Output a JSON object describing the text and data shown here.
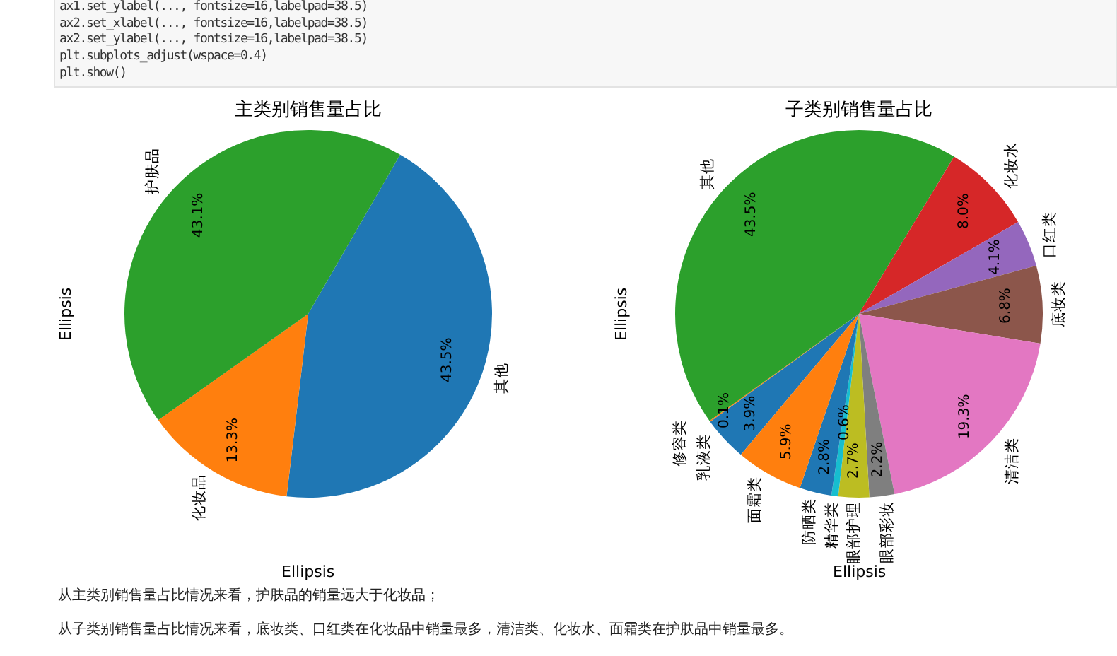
{
  "chart_data": [
    {
      "type": "pie",
      "title": "主类别销售量占比",
      "xlabel": "Ellipsis",
      "ylabel": "Ellipsis",
      "categories": [
        "其他",
        "化妆品",
        "护肤品"
      ],
      "values": [
        43.5,
        13.3,
        43.1
      ],
      "colors": [
        "#1f77b4",
        "#ff7f0e",
        "#2ca02c"
      ],
      "value_labels": [
        "43.5%",
        "13.3%",
        "43.1%"
      ],
      "annotations": [
        "ax1.set_ylabel(..., fontsize=16,labelpad=38.5)\nax2.set_xlabel(..., fontsize=16,labelpad=38.5)\nax2.set_ylabel(..., fontsize=16,labelpad=38.5)\nplt.subplots_adjust(wspace=0.4)\nplt.show()",
        "从主类别销售量占比情况来看，护肤品的销量远大于化妆品；",
        "从子类别销售量占比情况来看，底妆类、口红类在化妆品中销量最多，清洁类、化妆水、面霜类在护肤品中销量最多。"
      ]
    },
    {
      "type": "pie",
      "title": "子类别销售量占比",
      "xlabel": "Ellipsis",
      "ylabel": "Ellipsis",
      "categories": [
        "乳液类",
        "修容类",
        "其他",
        "化妆水",
        "口红类",
        "底妆类",
        "清洁类",
        "眼部彩妆",
        "眼部护理",
        "精华类",
        "防晒类",
        "面霜类"
      ],
      "values": [
        3.9,
        0.1,
        43.5,
        8.0,
        4.1,
        6.8,
        19.3,
        2.2,
        2.7,
        0.6,
        2.8,
        5.9
      ],
      "colors": [
        "#1f77b4",
        "#ff7f0e",
        "#2ca02c",
        "#d62728",
        "#9467bd",
        "#8c564b",
        "#e377c2",
        "#7f7f7f",
        "#bcbd22",
        "#17becf",
        "#1f77b4",
        "#ff7f0e"
      ],
      "value_labels": [
        "3.9%",
        "0.1%",
        "43.5%",
        "8.0%",
        "4.1%",
        "6.8%",
        "19.3%",
        "2.2%",
        "2.7%",
        "0.6%",
        "2.8%",
        "5.9%"
      ]
    }
  ]
}
